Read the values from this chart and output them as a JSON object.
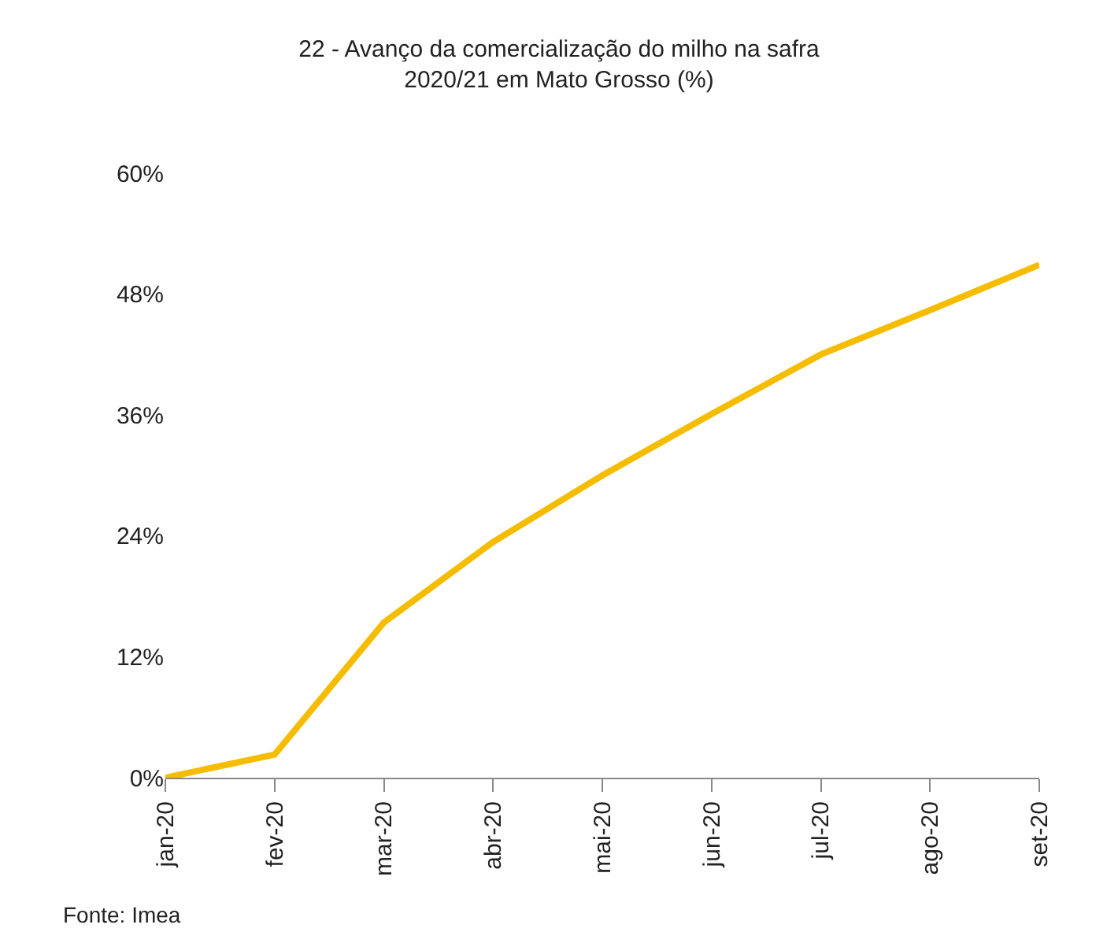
{
  "chart_data": {
    "type": "line",
    "title": "22 - Avanço da comercialização do milho na safra 2020/21 em Mato Grosso (%)",
    "categories": [
      "jan-20",
      "fev-20",
      "mar-20",
      "abr-20",
      "mai-20",
      "jun-20",
      "jul-20",
      "ago-20",
      "set-20"
    ],
    "series": [
      {
        "color": "#f5bc00",
        "values": [
          0,
          2.3,
          15.4,
          23.4,
          30,
          36.1,
          42,
          46.4,
          50.9
        ]
      }
    ],
    "ylim": [
      0,
      60
    ],
    "yticks": [
      {
        "value": 0,
        "label": "0%"
      },
      {
        "value": 12,
        "label": "12%"
      },
      {
        "value": 24,
        "label": "24%"
      },
      {
        "value": 36,
        "label": "36%"
      },
      {
        "value": 48,
        "label": "48%"
      },
      {
        "value": 60,
        "label": "60%"
      }
    ],
    "marker": "none",
    "line_style": "solid",
    "annotations": [
      "Fonte: Imea"
    ]
  }
}
